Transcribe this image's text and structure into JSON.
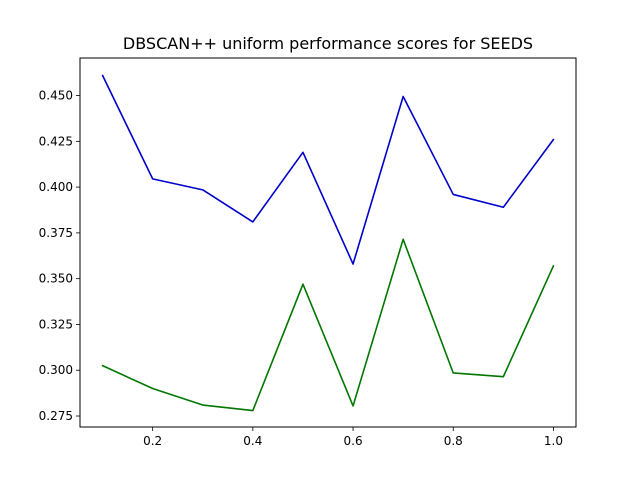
{
  "chart_data": {
    "type": "line",
    "title": "DBSCAN++ uniform performance scores for SEEDS",
    "xlabel": "",
    "ylabel": "",
    "x": [
      0.1,
      0.2,
      0.3,
      0.4,
      0.5,
      0.6,
      0.7,
      0.8,
      0.9,
      1.0
    ],
    "series": [
      {
        "color": "#0000cc",
        "values": [
          0.461,
          0.4045,
          0.3985,
          0.381,
          0.419,
          0.358,
          0.4495,
          0.396,
          0.389,
          0.426
        ]
      },
      {
        "color": "#007700",
        "values": [
          0.3025,
          0.29,
          0.281,
          0.278,
          0.347,
          0.2805,
          0.3715,
          0.2985,
          0.2965,
          0.357
        ]
      }
    ],
    "xlim": [
      0.055,
      1.045
    ],
    "ylim": [
      0.269,
      0.4705
    ],
    "xticks": [
      0.2,
      0.4,
      0.6,
      0.8,
      1.0
    ],
    "xtick_labels": [
      "0.2",
      "0.4",
      "0.6",
      "0.8",
      "1.0"
    ],
    "yticks": [
      0.275,
      0.3,
      0.325,
      0.35,
      0.375,
      0.4,
      0.425,
      0.45
    ],
    "ytick_labels": [
      "0.275",
      "0.300",
      "0.325",
      "0.350",
      "0.375",
      "0.400",
      "0.425",
      "0.450"
    ],
    "grid": false,
    "legend": "none"
  }
}
